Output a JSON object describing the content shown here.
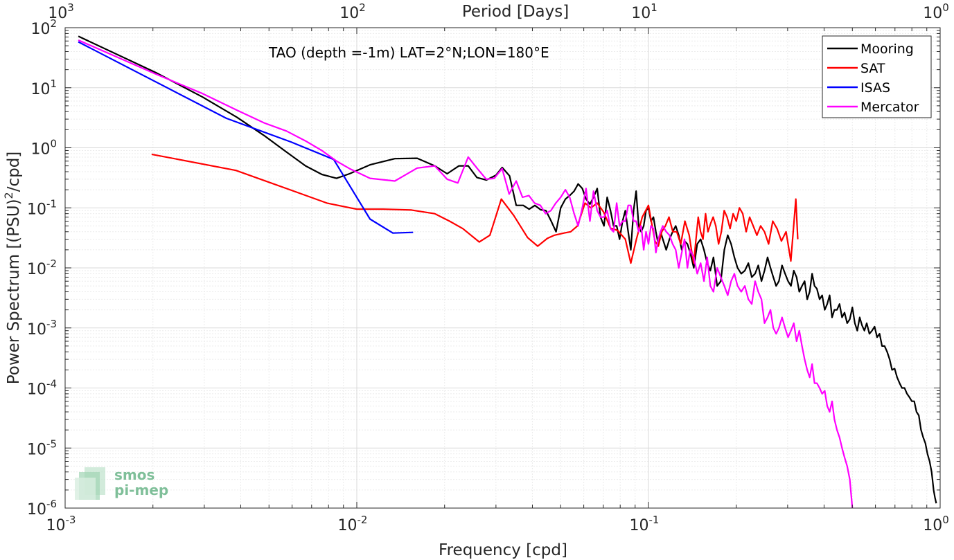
{
  "chart_data": {
    "type": "line",
    "annotation": "TAO (depth =-1m) LAT=2°N;LON=180°E",
    "xlabel": "Frequency [cpd]",
    "ylabel_prefix": "Power Spectrum [(PSU)",
    "ylabel_sup": "2",
    "ylabel_suffix": "/cpd]",
    "top_xlabel": "Period [Days]",
    "x_scale": "log",
    "y_scale": "log",
    "xlim": [
      0.001,
      1
    ],
    "ylim": [
      1e-06,
      100
    ],
    "grid": true,
    "minor_grid": true,
    "legend_position": "top-right",
    "x_ticks": [
      {
        "base": "10",
        "exp": "-3"
      },
      {
        "base": "10",
        "exp": "-2"
      },
      {
        "base": "10",
        "exp": "-1"
      },
      {
        "base": "10",
        "exp": "0"
      }
    ],
    "y_ticks": [
      {
        "base": "10",
        "exp": "-6"
      },
      {
        "base": "10",
        "exp": "-5"
      },
      {
        "base": "10",
        "exp": "-4"
      },
      {
        "base": "10",
        "exp": "-3"
      },
      {
        "base": "10",
        "exp": "-2"
      },
      {
        "base": "10",
        "exp": "-1"
      },
      {
        "base": "10",
        "exp": "0"
      },
      {
        "base": "10",
        "exp": "1"
      },
      {
        "base": "10",
        "exp": "2"
      }
    ],
    "top_ticks": [
      {
        "base": "10",
        "exp": "3"
      },
      {
        "base": "10",
        "exp": "2"
      },
      {
        "base": "10",
        "exp": "1"
      },
      {
        "base": "10",
        "exp": "0"
      }
    ],
    "series": [
      {
        "name": "Mooring",
        "color": "#000000",
        "x": [
          0.00111,
          0.00204,
          0.00296,
          0.00389,
          0.00481,
          0.00574,
          0.00667,
          0.00759,
          0.00852,
          0.00944,
          0.0111,
          0.0135,
          0.0161,
          0.0185,
          0.0204,
          0.0224,
          0.0241,
          0.0258,
          0.0278,
          0.03,
          0.0315,
          0.0334,
          0.0352,
          0.0372,
          0.039,
          0.0408,
          0.0427,
          0.0445,
          0.0464,
          0.0482,
          0.05,
          0.0519,
          0.0537,
          0.0556,
          0.0574,
          0.0593,
          0.0611,
          0.063,
          0.0648,
          0.0667,
          0.0685,
          0.0704,
          0.0722,
          0.0741,
          0.0759,
          0.0778,
          0.0796,
          0.0815,
          0.0833,
          0.0852,
          0.087,
          0.0889,
          0.0907,
          0.0926,
          0.0944,
          0.0963,
          0.0981,
          0.1,
          0.102,
          0.104,
          0.106,
          0.108,
          0.11,
          0.112,
          0.115,
          0.118,
          0.121,
          0.124,
          0.127,
          0.13,
          0.133,
          0.136,
          0.139,
          0.143,
          0.147,
          0.151,
          0.155,
          0.159,
          0.163,
          0.167,
          0.172,
          0.177,
          0.182,
          0.187,
          0.192,
          0.197,
          0.202,
          0.208,
          0.214,
          0.22,
          0.226,
          0.232,
          0.238,
          0.244,
          0.25,
          0.256,
          0.262,
          0.268,
          0.274,
          0.28,
          0.287,
          0.294,
          0.301,
          0.308,
          0.315,
          0.322,
          0.329,
          0.336,
          0.343,
          0.35,
          0.357,
          0.364,
          0.371,
          0.378,
          0.386,
          0.394,
          0.402,
          0.41,
          0.418,
          0.426,
          0.434,
          0.443,
          0.452,
          0.461,
          0.47,
          0.48,
          0.49,
          0.5,
          0.51,
          0.52,
          0.53,
          0.54,
          0.55,
          0.56,
          0.572,
          0.584,
          0.596,
          0.608,
          0.62,
          0.632,
          0.645,
          0.658,
          0.671,
          0.684,
          0.698,
          0.712,
          0.726,
          0.74,
          0.755,
          0.77,
          0.785,
          0.8,
          0.815,
          0.83,
          0.845,
          0.86,
          0.875,
          0.89,
          0.905,
          0.92,
          0.935,
          0.95,
          0.96,
          0.97
        ],
        "y": [
          72,
          18,
          7,
          3.2,
          1.6,
          0.85,
          0.5,
          0.36,
          0.31,
          0.37,
          0.52,
          0.66,
          0.67,
          0.5,
          0.37,
          0.5,
          0.5,
          0.32,
          0.29,
          0.35,
          0.47,
          0.34,
          0.11,
          0.11,
          0.095,
          0.11,
          0.093,
          0.09,
          0.06,
          0.04,
          0.1,
          0.14,
          0.16,
          0.19,
          0.25,
          0.21,
          0.14,
          0.115,
          0.15,
          0.21,
          0.07,
          0.05,
          0.15,
          0.09,
          0.05,
          0.05,
          0.03,
          0.06,
          0.09,
          0.04,
          0.02,
          0.09,
          0.19,
          0.05,
          0.04,
          0.05,
          0.09,
          0.1,
          0.06,
          0.07,
          0.04,
          0.025,
          0.04,
          0.03,
          0.02,
          0.03,
          0.04,
          0.05,
          0.035,
          0.02,
          0.028,
          0.025,
          0.018,
          0.01,
          0.025,
          0.03,
          0.02,
          0.012,
          0.009,
          0.015,
          0.005,
          0.006,
          0.02,
          0.035,
          0.025,
          0.015,
          0.01,
          0.008,
          0.009,
          0.012,
          0.007,
          0.008,
          0.011,
          0.006,
          0.009,
          0.015,
          0.01,
          0.007,
          0.005,
          0.006,
          0.011,
          0.008,
          0.006,
          0.005,
          0.009,
          0.007,
          0.004,
          0.005,
          0.006,
          0.003,
          0.004,
          0.008,
          0.005,
          0.0045,
          0.003,
          0.0035,
          0.002,
          0.0025,
          0.0035,
          0.0015,
          0.002,
          0.002,
          0.0025,
          0.0015,
          0.0018,
          0.0012,
          0.0014,
          0.0022,
          0.0012,
          0.0009,
          0.0015,
          0.0011,
          0.0009,
          0.0012,
          0.0008,
          0.0009,
          0.00105,
          0.0007,
          0.0008,
          0.0005,
          0.0005,
          0.0004,
          0.0003,
          0.0002,
          0.00021,
          0.00015,
          0.00012,
          0.0001,
          0.0001,
          8e-05,
          7e-05,
          6e-05,
          6e-05,
          4e-05,
          3.5e-05,
          2e-05,
          1.5e-05,
          1.2e-05,
          8e-06,
          6e-06,
          4e-06,
          2e-06,
          1.5e-06,
          1.2e-06
        ]
      },
      {
        "name": "SAT",
        "color": "#ff0000",
        "x": [
          0.00198,
          0.00385,
          0.0059,
          0.0079,
          0.01,
          0.0123,
          0.0154,
          0.0185,
          0.0208,
          0.0231,
          0.0263,
          0.0286,
          0.0313,
          0.0345,
          0.0385,
          0.0417,
          0.045,
          0.0476,
          0.0513,
          0.0541,
          0.0571,
          0.0606,
          0.0635,
          0.0667,
          0.0702,
          0.0741,
          0.0784,
          0.0833,
          0.087,
          0.0909,
          0.0952,
          0.1,
          0.1026,
          0.1053,
          0.1081,
          0.1111,
          0.1143,
          0.1176,
          0.1212,
          0.125,
          0.129,
          0.1333,
          0.1379,
          0.1404,
          0.1429,
          0.1455,
          0.1481,
          0.1509,
          0.1538,
          0.1569,
          0.16,
          0.1633,
          0.1667,
          0.1702,
          0.1739,
          0.1778,
          0.1818,
          0.186,
          0.1905,
          0.1951,
          0.2,
          0.2051,
          0.2105,
          0.2162,
          0.2222,
          0.2286,
          0.2353,
          0.2424,
          0.25,
          0.2581,
          0.2667,
          0.2759,
          0.2857,
          0.2963,
          0.3077,
          0.32,
          0.325
        ],
        "y": [
          0.78,
          0.42,
          0.2,
          0.12,
          0.095,
          0.095,
          0.092,
          0.08,
          0.06,
          0.045,
          0.027,
          0.035,
          0.14,
          0.075,
          0.032,
          0.023,
          0.031,
          0.035,
          0.038,
          0.04,
          0.05,
          0.12,
          0.1,
          0.12,
          0.085,
          0.046,
          0.042,
          0.03,
          0.012,
          0.03,
          0.07,
          0.11,
          0.055,
          0.028,
          0.023,
          0.04,
          0.05,
          0.07,
          0.04,
          0.04,
          0.025,
          0.06,
          0.035,
          0.02,
          0.012,
          0.03,
          0.07,
          0.04,
          0.03,
          0.08,
          0.04,
          0.055,
          0.07,
          0.05,
          0.025,
          0.04,
          0.09,
          0.07,
          0.045,
          0.08,
          0.06,
          0.1,
          0.08,
          0.04,
          0.07,
          0.05,
          0.035,
          0.05,
          0.04,
          0.025,
          0.06,
          0.045,
          0.028,
          0.04,
          0.013,
          0.14,
          0.03
        ]
      },
      {
        "name": "ISAS",
        "color": "#0000ff",
        "x": [
          0.00111,
          0.00357,
          0.00595,
          0.00833,
          0.0111,
          0.0133,
          0.0156
        ],
        "y": [
          58,
          3.1,
          1.25,
          0.64,
          0.065,
          0.038,
          0.039
        ]
      },
      {
        "name": "Mercator",
        "color": "#ff00ff",
        "x": [
          0.00111,
          0.00204,
          0.00296,
          0.00389,
          0.00481,
          0.00574,
          0.00667,
          0.00759,
          0.00852,
          0.00944,
          0.0111,
          0.0135,
          0.0161,
          0.0185,
          0.0204,
          0.0222,
          0.0241,
          0.0259,
          0.0278,
          0.0296,
          0.0315,
          0.0333,
          0.0352,
          0.037,
          0.0389,
          0.0407,
          0.0426,
          0.0444,
          0.0463,
          0.0481,
          0.05,
          0.0519,
          0.0537,
          0.0556,
          0.0574,
          0.0593,
          0.0611,
          0.063,
          0.0648,
          0.0667,
          0.0685,
          0.0704,
          0.0722,
          0.0741,
          0.0759,
          0.0778,
          0.0796,
          0.0815,
          0.0833,
          0.0852,
          0.087,
          0.0889,
          0.0907,
          0.0926,
          0.0944,
          0.0963,
          0.0981,
          0.1,
          0.102,
          0.104,
          0.106,
          0.108,
          0.11,
          0.112,
          0.115,
          0.118,
          0.121,
          0.124,
          0.127,
          0.13,
          0.133,
          0.136,
          0.139,
          0.143,
          0.147,
          0.151,
          0.155,
          0.159,
          0.163,
          0.167,
          0.172,
          0.177,
          0.182,
          0.187,
          0.192,
          0.197,
          0.202,
          0.208,
          0.214,
          0.22,
          0.226,
          0.232,
          0.238,
          0.244,
          0.25,
          0.256,
          0.262,
          0.268,
          0.274,
          0.28,
          0.287,
          0.294,
          0.301,
          0.308,
          0.315,
          0.322,
          0.329,
          0.336,
          0.343,
          0.35,
          0.357,
          0.364,
          0.371,
          0.378,
          0.386,
          0.394,
          0.402,
          0.41,
          0.418,
          0.426,
          0.434,
          0.443,
          0.452,
          0.461,
          0.47,
          0.48,
          0.49,
          0.5
        ],
        "y": [
          62,
          17,
          8,
          4.2,
          2.6,
          1.9,
          1.3,
          0.9,
          0.6,
          0.45,
          0.31,
          0.28,
          0.46,
          0.5,
          0.3,
          0.26,
          0.7,
          0.45,
          0.3,
          0.31,
          0.45,
          0.17,
          0.28,
          0.15,
          0.16,
          0.12,
          0.11,
          0.08,
          0.09,
          0.12,
          0.15,
          0.2,
          0.15,
          0.08,
          0.05,
          0.1,
          0.21,
          0.06,
          0.19,
          0.09,
          0.07,
          0.07,
          0.09,
          0.045,
          0.04,
          0.12,
          0.05,
          0.06,
          0.06,
          0.11,
          0.11,
          0.06,
          0.06,
          0.04,
          0.05,
          0.02,
          0.04,
          0.025,
          0.05,
          0.045,
          0.018,
          0.03,
          0.04,
          0.05,
          0.04,
          0.035,
          0.025,
          0.02,
          0.01,
          0.018,
          0.03,
          0.01,
          0.02,
          0.015,
          0.008,
          0.012,
          0.006,
          0.015,
          0.005,
          0.004,
          0.01,
          0.007,
          0.005,
          0.0035,
          0.006,
          0.008,
          0.005,
          0.004,
          0.005,
          0.003,
          0.0025,
          0.006,
          0.004,
          0.003,
          0.0012,
          0.0015,
          0.002,
          0.001,
          0.0008,
          0.001,
          0.0015,
          0.001,
          0.0007,
          0.0009,
          0.0012,
          0.0006,
          0.0009,
          0.0005,
          0.0003,
          0.0002,
          0.00015,
          0.00025,
          0.00012,
          0.00012,
          0.0001,
          8e-05,
          9e-05,
          5e-05,
          4e-05,
          6e-05,
          3e-05,
          2e-05,
          1.5e-05,
          1e-05,
          7e-06,
          5e-06,
          3e-06,
          1e-06
        ]
      }
    ]
  },
  "logo": {
    "line1": "smos",
    "line2": "pi-mep",
    "color": "#7fbf99"
  }
}
